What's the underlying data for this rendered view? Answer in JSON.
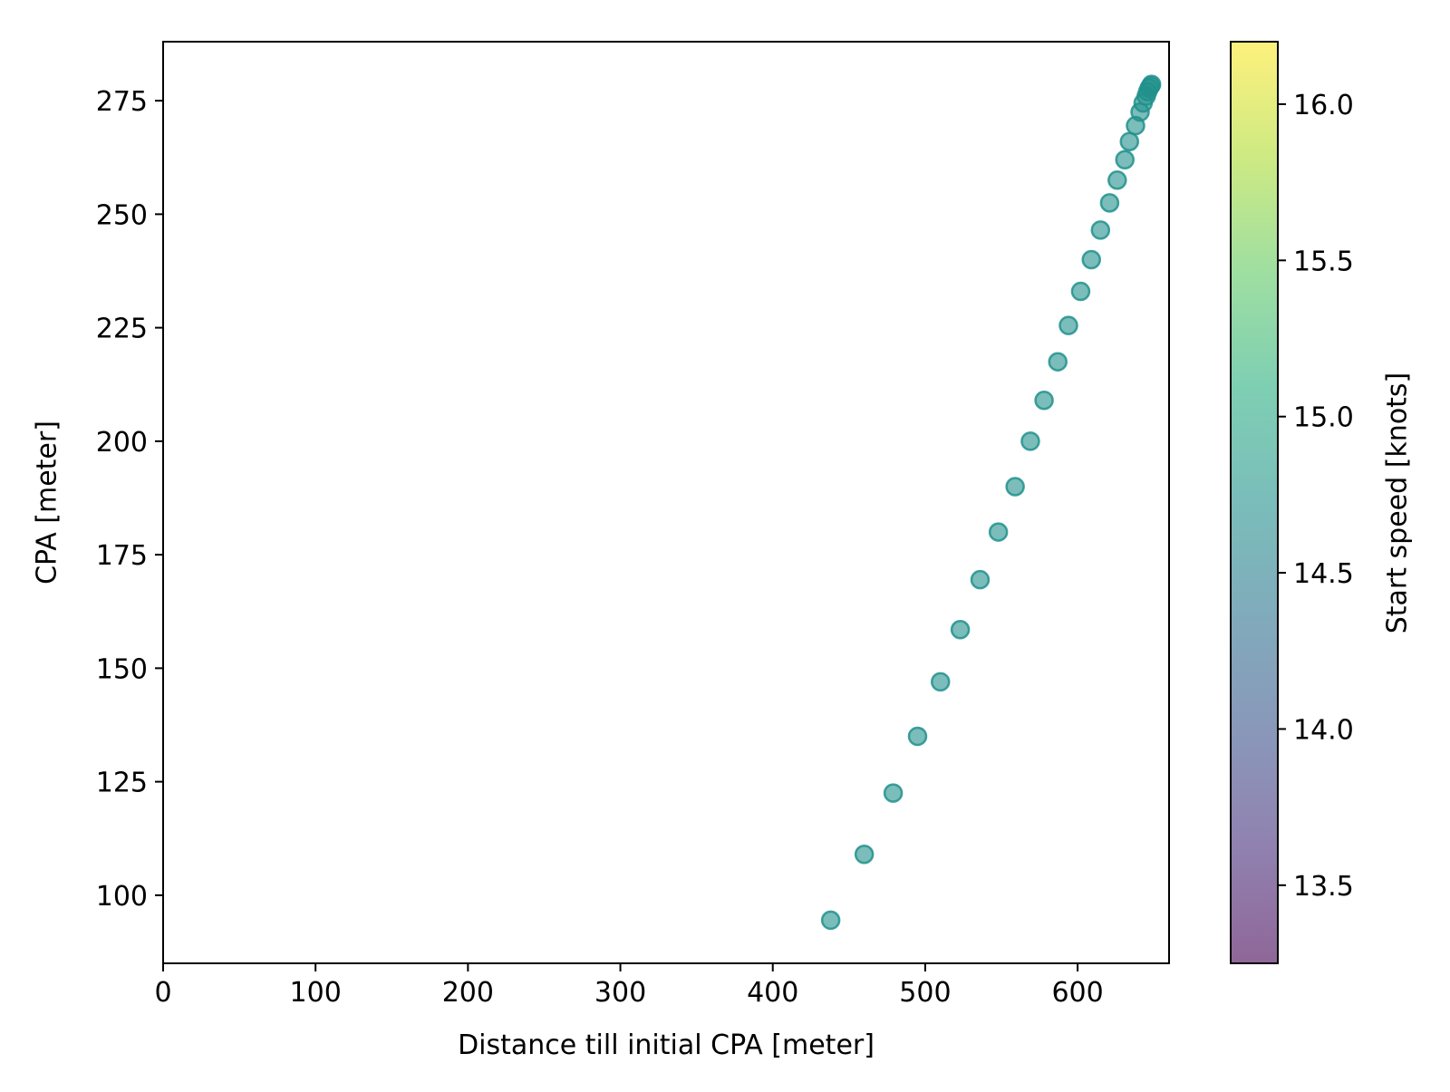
{
  "chart_data": {
    "type": "scatter",
    "xlabel": "Distance till initial CPA [meter]",
    "ylabel": "CPA [meter]",
    "xlim": [
      0,
      660
    ],
    "ylim": [
      85,
      288
    ],
    "xticks": [
      0,
      100,
      200,
      300,
      400,
      500,
      600
    ],
    "yticks": [
      100,
      125,
      150,
      175,
      200,
      225,
      250,
      275
    ],
    "grid": false,
    "marker_color": "#21918c",
    "marker_alpha": 0.6,
    "colorbar": {
      "label": "Start speed [knots]",
      "colormap": "viridis",
      "range": [
        13.25,
        16.2
      ],
      "ticks": [
        13.5,
        14.0,
        14.5,
        15.0,
        15.5,
        16.0
      ],
      "alpha": 0.6
    },
    "points": [
      {
        "x": 438,
        "y": 94.5
      },
      {
        "x": 460,
        "y": 109
      },
      {
        "x": 479,
        "y": 122.5
      },
      {
        "x": 495,
        "y": 135
      },
      {
        "x": 510,
        "y": 147
      },
      {
        "x": 523,
        "y": 158.5
      },
      {
        "x": 536,
        "y": 169.5
      },
      {
        "x": 548,
        "y": 180
      },
      {
        "x": 559,
        "y": 190
      },
      {
        "x": 569,
        "y": 200
      },
      {
        "x": 578,
        "y": 209
      },
      {
        "x": 587,
        "y": 217.5
      },
      {
        "x": 594,
        "y": 225.5
      },
      {
        "x": 602,
        "y": 233
      },
      {
        "x": 609,
        "y": 240
      },
      {
        "x": 615,
        "y": 246.5
      },
      {
        "x": 621,
        "y": 252.5
      },
      {
        "x": 626,
        "y": 257.5
      },
      {
        "x": 631,
        "y": 262
      },
      {
        "x": 634,
        "y": 266
      },
      {
        "x": 638,
        "y": 269.5
      },
      {
        "x": 641,
        "y": 272.5
      },
      {
        "x": 643,
        "y": 274.5
      },
      {
        "x": 645,
        "y": 276
      },
      {
        "x": 646,
        "y": 277
      },
      {
        "x": 647,
        "y": 277.8
      },
      {
        "x": 648,
        "y": 278.3
      },
      {
        "x": 648.5,
        "y": 278.6
      }
    ]
  }
}
